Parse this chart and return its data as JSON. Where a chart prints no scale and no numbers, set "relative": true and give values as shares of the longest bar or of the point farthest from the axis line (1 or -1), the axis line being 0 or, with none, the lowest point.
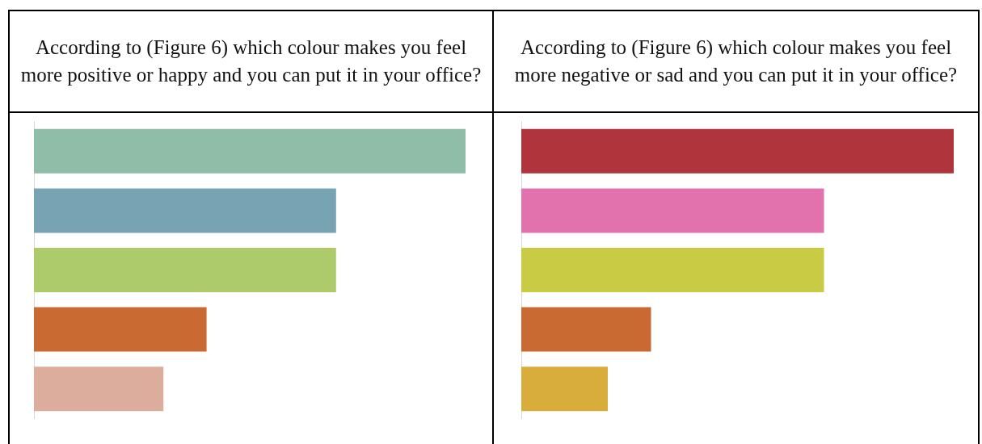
{
  "chart_data": [
    {
      "type": "bar",
      "title": "According to (Figure 6) which colour makes you feel more positive or happy and you can put it in your office?",
      "orientation": "horizontal",
      "relative": true,
      "categories": [
        null,
        null,
        null,
        null,
        null
      ],
      "values": [
        1,
        0.7,
        0.7,
        0.4,
        0.3
      ],
      "colors": [
        "#8fbda8",
        "#78a3b3",
        "#aecb6c",
        "#c86a32",
        "#dcad9c"
      ]
    },
    {
      "type": "bar",
      "title": "According to (Figure 6) which colour makes you feel more negative or sad and you can put it in your office?",
      "orientation": "horizontal",
      "relative": true,
      "categories": [
        null,
        null,
        null,
        null,
        null
      ],
      "values": [
        1,
        0.7,
        0.7,
        0.3,
        0.2
      ],
      "colors": [
        "#b0343c",
        "#e272ae",
        "#c9cb45",
        "#c86a32",
        "#d9ad3c"
      ]
    }
  ]
}
